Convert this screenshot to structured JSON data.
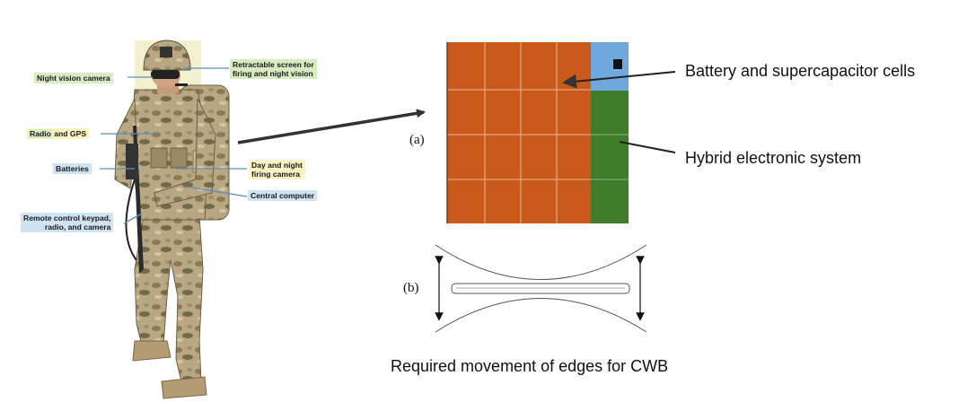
{
  "soldier_callouts": {
    "night_vision_camera": "Night vision camera",
    "retractable_screen_line1": "Retractable screen for",
    "retractable_screen_line2": "firing and night vision",
    "radio_and_gps_radio": "Radio",
    "radio_and_gps_rest": " and GPS",
    "batteries": "Batteries",
    "day_night_line1": "Day and night",
    "day_night_line2": "firing camera",
    "central_computer": "Central computer",
    "remote_line1": "Remote control keypad,",
    "remote_line2": "radio, and camera"
  },
  "panel": {
    "label_a": "(a)",
    "label_b": "(b)",
    "battery_label": "Battery and supercapacitor cells",
    "hybrid_label": "Hybrid electronic system",
    "caption": "Required movement of edges for CWB"
  },
  "colors": {
    "battery_orange": "#c95a1c",
    "hybrid_green": "#3f7d2a",
    "cap_blue": "#6ea8dc",
    "camo_base": "#b9a784"
  }
}
